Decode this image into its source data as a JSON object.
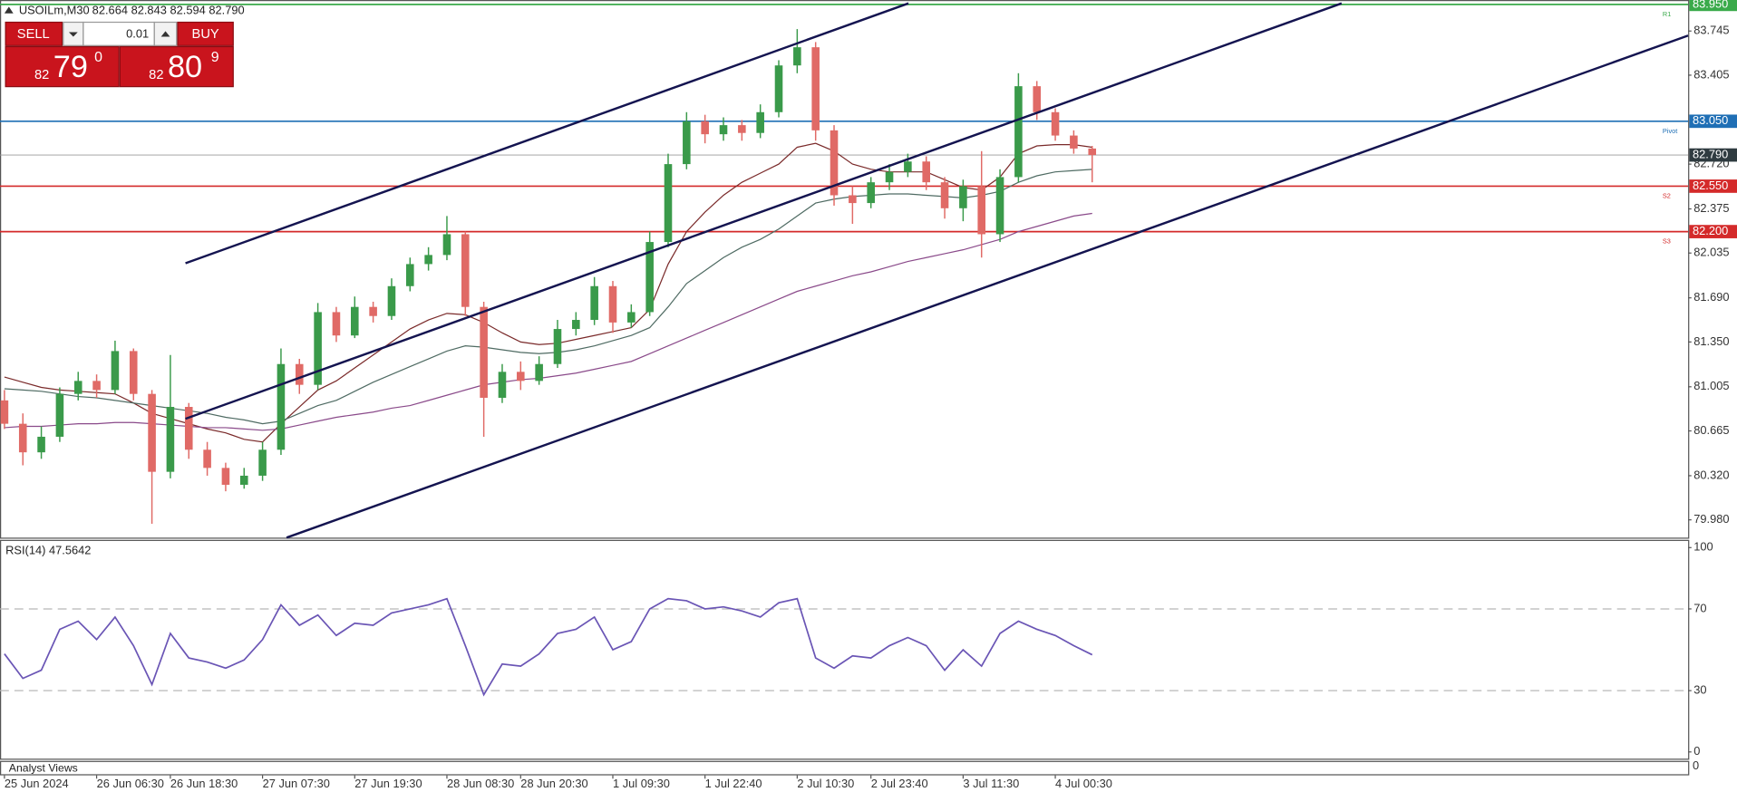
{
  "header": {
    "symbol": "USOILm,M30",
    "quote": "82.664 82.843 82.594 82.790"
  },
  "trade_panel": {
    "sell": "SELL",
    "buy": "BUY",
    "lot": "0.01",
    "sell_price": {
      "big_figure": "82",
      "pips": "79",
      "fraction": "0"
    },
    "buy_price": {
      "big_figure": "82",
      "pips": "80",
      "fraction": "9"
    }
  },
  "chart_data": [
    {
      "type": "candlestick",
      "categories": [
        "25 Jun 2024",
        null,
        null,
        null,
        null,
        "26 Jun 06:30",
        null,
        null,
        null,
        "26 Jun 18:30",
        null,
        null,
        null,
        null,
        "27 Jun 07:30",
        null,
        null,
        null,
        null,
        "27 Jun 19:30",
        null,
        null,
        null,
        null,
        "28 Jun 08:30",
        null,
        null,
        null,
        "28 Jun 20:30",
        null,
        null,
        null,
        null,
        "1 Jul 09:30",
        null,
        null,
        null,
        null,
        "1 Jul 22:40",
        null,
        null,
        null,
        null,
        "2 Jul 10:30",
        null,
        null,
        null,
        "2 Jul 23:40",
        null,
        null,
        null,
        null,
        "3 Jul 11:30",
        null,
        null,
        null,
        null,
        "4 Jul 00:30",
        null,
        null
      ],
      "open": [
        80.9,
        80.72,
        80.5,
        80.62,
        80.95,
        81.05,
        80.98,
        81.28,
        80.95,
        80.35,
        80.85,
        80.52,
        80.38,
        80.25,
        80.32,
        80.52,
        81.18,
        81.02,
        81.58,
        81.4,
        81.62,
        81.55,
        81.78,
        81.95,
        82.02,
        82.18,
        81.62,
        80.92,
        81.12,
        81.05,
        81.18,
        81.45,
        81.52,
        81.78,
        81.5,
        81.58,
        82.12,
        82.72,
        83.05,
        82.95,
        83.02,
        82.96,
        83.12,
        83.48,
        83.62,
        82.98,
        82.48,
        82.42,
        82.58,
        82.66,
        82.74,
        82.58,
        82.38,
        82.55,
        82.18,
        82.62,
        83.32,
        83.12,
        82.94,
        82.84
      ],
      "high": [
        80.98,
        80.8,
        80.7,
        81.0,
        81.12,
        81.1,
        81.36,
        81.3,
        80.98,
        81.25,
        80.88,
        80.58,
        80.42,
        80.38,
        80.58,
        81.3,
        81.22,
        81.65,
        81.62,
        81.7,
        81.66,
        81.84,
        82.0,
        82.08,
        82.32,
        82.2,
        81.66,
        81.18,
        81.2,
        81.24,
        81.52,
        81.58,
        81.85,
        81.82,
        81.64,
        82.2,
        82.8,
        83.12,
        83.1,
        83.08,
        83.06,
        83.18,
        83.52,
        83.76,
        83.66,
        83.02,
        82.55,
        82.62,
        82.72,
        82.8,
        82.78,
        82.62,
        82.6,
        82.82,
        82.68,
        83.42,
        83.36,
        83.15,
        82.98,
        82.86
      ],
      "low": [
        80.68,
        80.4,
        80.45,
        80.58,
        80.9,
        80.92,
        80.95,
        80.9,
        79.95,
        80.3,
        80.45,
        80.32,
        80.2,
        80.22,
        80.28,
        80.48,
        80.95,
        80.98,
        81.35,
        81.38,
        81.5,
        81.52,
        81.74,
        81.9,
        81.98,
        81.55,
        80.62,
        80.88,
        80.98,
        81.02,
        81.15,
        81.4,
        81.48,
        81.42,
        81.46,
        81.55,
        82.08,
        82.68,
        82.88,
        82.9,
        82.9,
        82.92,
        83.08,
        83.42,
        82.9,
        82.4,
        82.26,
        82.38,
        82.52,
        82.62,
        82.52,
        82.3,
        82.28,
        82.0,
        82.12,
        82.58,
        83.06,
        82.9,
        82.8,
        82.58
      ],
      "close": [
        80.72,
        80.5,
        80.62,
        80.95,
        81.05,
        80.98,
        81.28,
        80.95,
        80.35,
        80.85,
        80.52,
        80.38,
        80.25,
        80.32,
        80.52,
        81.18,
        81.02,
        81.58,
        81.4,
        81.62,
        81.55,
        81.78,
        81.95,
        82.02,
        82.18,
        81.62,
        80.92,
        81.12,
        81.05,
        81.18,
        81.45,
        81.52,
        81.78,
        81.5,
        81.58,
        82.12,
        82.72,
        83.05,
        82.95,
        83.02,
        82.96,
        83.12,
        83.48,
        83.62,
        82.98,
        82.48,
        82.42,
        82.58,
        82.66,
        82.74,
        82.58,
        82.38,
        82.55,
        82.18,
        82.62,
        83.32,
        83.12,
        82.94,
        82.84,
        82.79
      ],
      "up_color": "#3a9a4a",
      "down_color": "#e06a66",
      "moving_averages": [
        {
          "color": "#7a2a2a",
          "values": [
            81.08,
            81.04,
            81.0,
            80.98,
            80.97,
            80.96,
            80.95,
            80.88,
            80.8,
            80.76,
            80.72,
            80.68,
            80.65,
            80.6,
            80.58,
            80.72,
            80.85,
            80.98,
            81.05,
            81.15,
            81.25,
            81.35,
            81.45,
            81.52,
            81.57,
            81.56,
            81.5,
            81.42,
            81.35,
            81.33,
            81.34,
            81.37,
            81.4,
            81.43,
            81.46,
            81.6,
            81.95,
            82.2,
            82.35,
            82.48,
            82.58,
            82.65,
            82.72,
            82.85,
            82.88,
            82.82,
            82.72,
            82.68,
            82.66,
            82.66,
            82.66,
            82.6,
            82.54,
            82.52,
            82.62,
            82.8,
            82.86,
            82.87,
            82.87,
            82.85
          ]
        },
        {
          "color": "#4f6b63",
          "values": [
            80.99,
            80.98,
            80.97,
            80.95,
            80.93,
            80.92,
            80.9,
            80.88,
            80.86,
            80.84,
            80.82,
            80.8,
            80.77,
            80.75,
            80.72,
            80.74,
            80.8,
            80.86,
            80.9,
            80.97,
            81.04,
            81.1,
            81.16,
            81.22,
            81.28,
            81.32,
            81.31,
            81.29,
            81.27,
            81.26,
            81.27,
            81.29,
            81.32,
            81.36,
            81.4,
            81.46,
            81.62,
            81.8,
            81.9,
            82.0,
            82.08,
            82.14,
            82.22,
            82.32,
            82.42,
            82.45,
            82.47,
            82.48,
            82.49,
            82.49,
            82.48,
            82.47,
            82.46,
            82.48,
            82.51,
            82.58,
            82.63,
            82.66,
            82.67,
            82.68
          ]
        },
        {
          "color": "#8a4a8a",
          "values": [
            80.69,
            80.7,
            80.7,
            80.71,
            80.72,
            80.72,
            80.73,
            80.73,
            80.72,
            80.71,
            80.7,
            80.69,
            80.69,
            80.68,
            80.67,
            80.68,
            80.71,
            80.74,
            80.77,
            80.79,
            80.81,
            80.84,
            80.86,
            80.9,
            80.94,
            80.98,
            81.02,
            81.04,
            81.06,
            81.07,
            81.09,
            81.11,
            81.14,
            81.17,
            81.2,
            81.26,
            81.32,
            81.38,
            81.44,
            81.5,
            81.56,
            81.62,
            81.68,
            81.74,
            81.78,
            81.82,
            81.86,
            81.89,
            81.93,
            81.97,
            82.0,
            82.03,
            82.06,
            82.1,
            82.14,
            82.2,
            82.24,
            82.28,
            82.32,
            82.34
          ]
        }
      ],
      "ylim": [
        79.843,
        83.984
      ],
      "yticks": [
        83.745,
        83.405,
        {
          "value": 82.72,
          "label": "82.720"
        },
        82.375,
        82.035,
        {
          "value": 81.69,
          "label": "81.690"
        },
        {
          "value": 81.35,
          "label": "81.350"
        },
        81.005,
        80.665,
        {
          "value": 80.32,
          "label": "80.320"
        },
        {
          "value": 79.98,
          "label": "79.980"
        }
      ],
      "grid": false,
      "levels": [
        {
          "value": 83.95,
          "label": "83.950",
          "name": "R1",
          "color": "#3aaa4a"
        },
        {
          "value": 83.05,
          "label": "83.050",
          "name": "Pivot",
          "color": "#1f6fb5"
        },
        {
          "value": 82.55,
          "label": "82.550",
          "name": "S2",
          "color": "#d42a2a"
        },
        {
          "value": 82.2,
          "label": "82.200",
          "name": "S3",
          "color": "#d42a2a"
        }
      ],
      "current_price": {
        "value": 82.79,
        "label": "82.790",
        "color": "#2f3b40"
      }
    },
    {
      "type": "line",
      "title": "RSI(14) 47.5642",
      "color": "#6a55b5",
      "values": [
        48,
        36,
        40,
        60,
        64,
        55,
        66,
        52,
        33,
        58,
        46,
        44,
        41,
        45,
        55,
        72,
        62,
        67,
        57,
        63,
        62,
        68,
        70,
        72,
        75,
        52,
        28,
        43,
        42,
        48,
        58,
        60,
        66,
        50,
        54,
        70,
        75,
        74,
        70,
        71,
        69,
        66,
        73,
        75,
        46,
        41,
        47,
        46,
        52,
        56,
        52,
        40,
        50,
        42,
        58,
        64,
        60,
        57,
        52,
        47.56
      ],
      "ylim": [
        -3.3,
        103.8
      ],
      "yticks": [
        0,
        30,
        70,
        100
      ],
      "levels": [
        30,
        70
      ]
    }
  ],
  "footer_panel": {
    "title": "Analyst Views",
    "tick": "0"
  }
}
